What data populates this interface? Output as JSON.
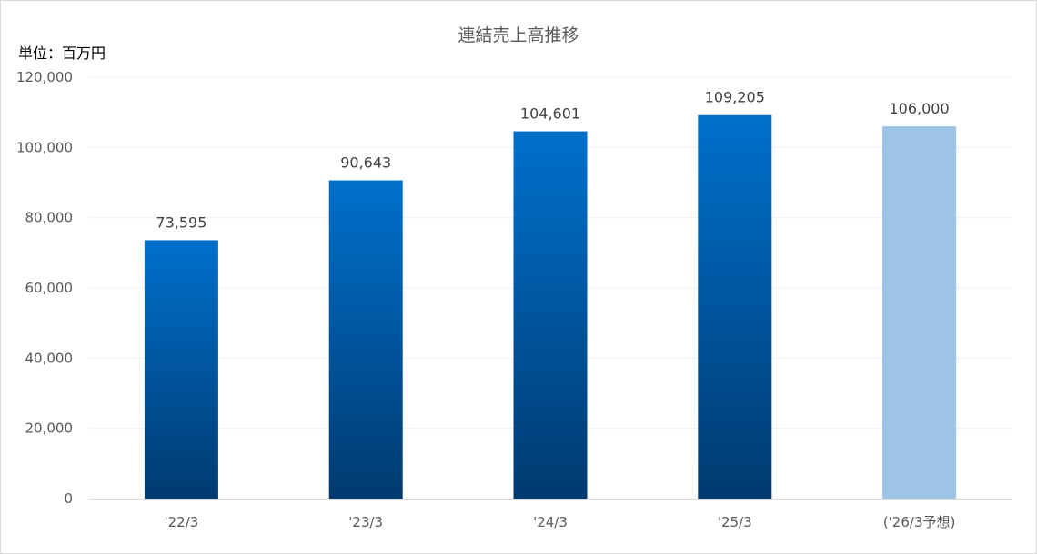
{
  "chart_data": {
    "type": "bar",
    "title": "連結売上高推移",
    "unit_label": "単位：百万円",
    "categories": [
      "'22/3",
      "'23/3",
      "'24/3",
      "'25/3",
      "('26/3予想)"
    ],
    "values": [
      73595,
      90643,
      104601,
      109205,
      106000
    ],
    "data_labels": [
      "73,595",
      "90,643",
      "104,601",
      "109,205",
      "106,000"
    ],
    "forecast_flags": [
      false,
      false,
      false,
      false,
      true
    ],
    "ylim": [
      0,
      120000
    ],
    "yticks": [
      0,
      20000,
      40000,
      60000,
      80000,
      100000,
      120000
    ],
    "ytick_labels": [
      "0",
      "20,000",
      "40,000",
      "60,000",
      "80,000",
      "100,000",
      "120,000"
    ],
    "grid": true,
    "legend": "none",
    "colors": {
      "bar_top": "#0070CC",
      "bar_bottom": "#003A70",
      "forecast": "#9DC3E6",
      "grid": "#F0F0F0",
      "axis": "#D9D9D9"
    }
  }
}
